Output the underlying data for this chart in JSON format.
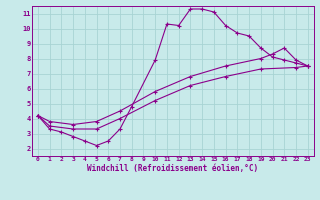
{
  "xlabel": "Windchill (Refroidissement éolien,°C)",
  "bg_color": "#c8eaea",
  "line_color": "#8b008b",
  "grid_color": "#a8d4d4",
  "spine_color": "#8b008b",
  "xlim": [
    -0.5,
    23.5
  ],
  "ylim": [
    1.5,
    11.5
  ],
  "xticks": [
    0,
    1,
    2,
    3,
    4,
    5,
    6,
    7,
    8,
    9,
    10,
    11,
    12,
    13,
    14,
    15,
    16,
    17,
    18,
    19,
    20,
    21,
    22,
    23
  ],
  "yticks": [
    2,
    3,
    4,
    5,
    6,
    7,
    8,
    9,
    10,
    11
  ],
  "series1_x": [
    0,
    1,
    2,
    3,
    4,
    5,
    6,
    7,
    8,
    10,
    11,
    12,
    13,
    14,
    15,
    16,
    17,
    18,
    19,
    20,
    21,
    22,
    23
  ],
  "series1_y": [
    4.2,
    3.3,
    3.1,
    2.8,
    2.5,
    2.2,
    2.5,
    3.3,
    4.8,
    7.9,
    10.3,
    10.2,
    11.3,
    11.3,
    11.1,
    10.2,
    9.7,
    9.5,
    8.7,
    8.1,
    7.9,
    7.7,
    7.5
  ],
  "series2_x": [
    0,
    1,
    3,
    5,
    7,
    10,
    13,
    16,
    19,
    20,
    21,
    22,
    23
  ],
  "series2_y": [
    4.2,
    3.8,
    3.6,
    3.8,
    4.5,
    5.8,
    6.8,
    7.5,
    8.0,
    8.3,
    8.7,
    7.9,
    7.5
  ],
  "series3_x": [
    0,
    1,
    3,
    5,
    7,
    10,
    13,
    16,
    19,
    22,
    23
  ],
  "series3_y": [
    4.2,
    3.5,
    3.3,
    3.3,
    4.0,
    5.2,
    6.2,
    6.8,
    7.3,
    7.4,
    7.5
  ]
}
